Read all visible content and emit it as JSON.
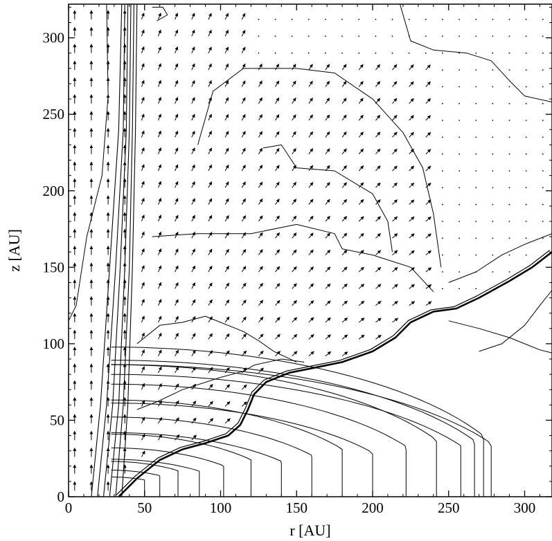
{
  "chart_data": {
    "type": "contour",
    "xlabel": "r [AU]",
    "ylabel": "z [AU]",
    "xlim": [
      0,
      318
    ],
    "ylim": [
      0,
      322
    ],
    "x_ticks": [
      0,
      50,
      100,
      150,
      200,
      250,
      300
    ],
    "y_ticks": [
      0,
      50,
      100,
      150,
      200,
      250,
      300
    ],
    "x_tick_labels": [
      "0",
      "50",
      "100",
      "150",
      "200",
      "250",
      "300"
    ],
    "y_tick_labels": [
      "0",
      "50",
      "100",
      "150",
      "200",
      "250",
      "300"
    ],
    "disk_surface": [
      [
        33,
        0
      ],
      [
        45,
        12
      ],
      [
        60,
        24
      ],
      [
        75,
        31
      ],
      [
        90,
        35
      ],
      [
        105,
        40
      ],
      [
        113,
        47
      ],
      [
        118,
        57
      ],
      [
        122,
        67
      ],
      [
        130,
        75
      ],
      [
        145,
        81
      ],
      [
        160,
        84
      ],
      [
        180,
        88
      ],
      [
        200,
        95
      ],
      [
        215,
        104
      ],
      [
        225,
        114
      ],
      [
        240,
        121
      ],
      [
        255,
        123
      ],
      [
        270,
        130
      ],
      [
        290,
        141
      ],
      [
        305,
        150
      ],
      [
        318,
        160
      ]
    ],
    "disk_isodensity_radii": [
      40,
      50,
      62,
      76,
      92,
      110,
      130,
      150,
      170,
      190,
      212,
      232,
      248,
      257,
      263,
      268
    ],
    "jet_boundary_contours": [
      [
        [
          35,
          0
        ],
        [
          39,
          60
        ],
        [
          42,
          150
        ],
        [
          44,
          240
        ],
        [
          45,
          322
        ]
      ],
      [
        [
          31,
          0
        ],
        [
          36,
          60
        ],
        [
          40,
          150
        ],
        [
          42,
          240
        ],
        [
          43,
          322
        ]
      ],
      [
        [
          27,
          0
        ],
        [
          33,
          60
        ],
        [
          37,
          150
        ],
        [
          40,
          240
        ],
        [
          41,
          322
        ]
      ],
      [
        [
          23,
          0
        ],
        [
          29,
          60
        ],
        [
          34,
          150
        ],
        [
          38,
          240
        ],
        [
          39,
          322
        ]
      ],
      [
        [
          19,
          0
        ],
        [
          25,
          60
        ],
        [
          31,
          150
        ],
        [
          36,
          240
        ],
        [
          37,
          322
        ]
      ],
      [
        [
          15,
          0
        ],
        [
          21,
          60
        ],
        [
          27,
          150
        ],
        [
          33,
          240
        ],
        [
          35,
          322
        ]
      ]
    ],
    "outflow_contours": [
      [
        [
          0,
          115
        ],
        [
          5,
          125
        ],
        [
          12,
          170
        ],
        [
          22,
          210
        ],
        [
          26,
          262
        ],
        [
          25,
          322
        ]
      ],
      [
        [
          45,
          57
        ],
        [
          58,
          62
        ],
        [
          75,
          70
        ],
        [
          100,
          78
        ],
        [
          115,
          82
        ],
        [
          122,
          86
        ],
        [
          140,
          90
        ],
        [
          155,
          88
        ]
      ],
      [
        [
          45,
          100
        ],
        [
          60,
          112
        ],
        [
          75,
          114
        ],
        [
          90,
          118
        ],
        [
          115,
          108
        ],
        [
          125,
          102
        ],
        [
          135,
          95
        ],
        [
          150,
          88
        ]
      ],
      [
        [
          55,
          170
        ],
        [
          85,
          172
        ],
        [
          120,
          172
        ],
        [
          150,
          178
        ],
        [
          175,
          172
        ],
        [
          180,
          162
        ],
        [
          200,
          158
        ],
        [
          225,
          150
        ],
        [
          240,
          134
        ]
      ],
      [
        [
          85,
          230
        ],
        [
          95,
          265
        ],
        [
          115,
          280
        ],
        [
          150,
          280
        ],
        [
          175,
          277
        ],
        [
          200,
          260
        ],
        [
          220,
          238
        ],
        [
          233,
          215
        ],
        [
          240,
          185
        ],
        [
          245,
          150
        ]
      ],
      [
        [
          128,
          228
        ],
        [
          140,
          230
        ],
        [
          150,
          215
        ],
        [
          175,
          213
        ],
        [
          200,
          198
        ],
        [
          210,
          180
        ],
        [
          213,
          160
        ]
      ],
      [
        [
          218,
          322
        ],
        [
          225,
          298
        ],
        [
          240,
          292
        ],
        [
          262,
          290
        ],
        [
          278,
          285
        ],
        [
          290,
          272
        ],
        [
          300,
          262
        ],
        [
          318,
          258
        ]
      ],
      [
        [
          250,
          140
        ],
        [
          268,
          147
        ],
        [
          285,
          158
        ],
        [
          300,
          165
        ],
        [
          318,
          172
        ]
      ],
      [
        [
          270,
          95
        ],
        [
          285,
          100
        ],
        [
          300,
          112
        ],
        [
          310,
          125
        ],
        [
          318,
          135
        ]
      ],
      [
        [
          250,
          115
        ],
        [
          270,
          110
        ],
        [
          290,
          104
        ],
        [
          310,
          96
        ],
        [
          318,
          94
        ]
      ],
      [
        [
          55,
          320
        ],
        [
          62,
          320
        ],
        [
          65,
          315
        ],
        [
          58,
          311
        ]
      ]
    ],
    "velocity_field": {
      "axial_jet_region_r": [
        0,
        40
      ],
      "outflow_wind_region": "between jet and disk surface",
      "ambient_region": "outside outflow, small velocities"
    }
  }
}
